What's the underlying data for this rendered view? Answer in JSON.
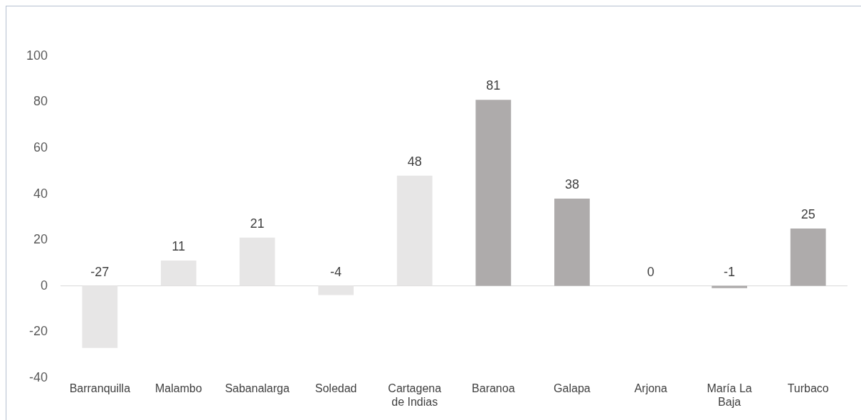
{
  "chart_data": {
    "type": "bar",
    "categories": [
      "Barranquilla",
      "Malambo",
      "Sabanalarga",
      "Soledad",
      "Cartagena de Indias",
      "Baranoa",
      "Galapa",
      "Arjona",
      "María La Baja",
      "Turbaco"
    ],
    "values": [
      -27,
      11,
      21,
      -4,
      48,
      81,
      38,
      0,
      -1,
      25
    ],
    "colors": [
      "#e7e6e6",
      "#e7e6e6",
      "#e7e6e6",
      "#e7e6e6",
      "#e7e6e6",
      "#aeabab",
      "#aeabab",
      "#aeabab",
      "#aeabab",
      "#aeabab"
    ],
    "ylim": [
      -40,
      100
    ],
    "yticks": [
      -40,
      -20,
      0,
      20,
      40,
      60,
      80,
      100
    ],
    "ref_lines": [
      {
        "axis": "y",
        "value": 0,
        "color": "#d9d9d9"
      }
    ],
    "grid": false,
    "legend": false,
    "data_labels": true
  }
}
